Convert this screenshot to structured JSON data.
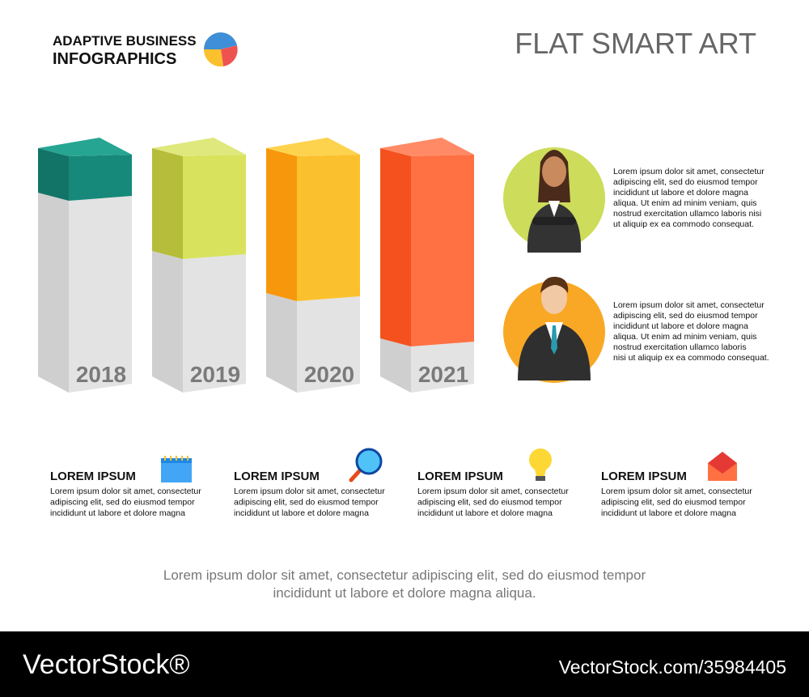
{
  "header": {
    "brand_line1": "ADAPTIVE BUSINESS",
    "brand_line2": "INFOGRAPHICS",
    "title": "FLAT SMART ART"
  },
  "bars": {
    "labels": [
      "2018",
      "2019",
      "2020",
      "2021"
    ]
  },
  "people": [
    {
      "lines": [
        "Lorem ipsum dolor sit amet, consectetur",
        "adipiscing elit, sed do eiusmod tempor",
        "incididunt ut labore et dolore magna",
        "aliqua. Ut enim ad minim veniam, quis",
        "nostrud exercitation ullamco laboris nisi",
        "ut aliquip ex ea commodo consequat."
      ]
    },
    {
      "lines": [
        "Lorem ipsum dolor sit amet, consectetur",
        "adipiscing elit, sed do eiusmod tempor",
        "incididunt ut labore et dolore magna",
        "aliqua. Ut enim ad minim veniam, quis",
        "nostrud exercitation ullamco laboris",
        "nisi ut aliquip ex ea commodo consequat."
      ]
    }
  ],
  "items": [
    {
      "heading": "LOREM IPSUM",
      "lines": [
        "Lorem ipsum dolor sit amet, consectetur",
        "adipiscing elit, sed do eiusmod tempor",
        "incididunt ut labore et dolore magna"
      ]
    },
    {
      "heading": "LOREM IPSUM",
      "lines": [
        "Lorem ipsum dolor sit amet, consectetur",
        "adipiscing elit, sed do eiusmod tempor",
        "incididunt ut labore et dolore magna"
      ]
    },
    {
      "heading": "LOREM IPSUM",
      "lines": [
        "Lorem ipsum dolor sit amet, consectetur",
        "adipiscing elit, sed do eiusmod tempor",
        "incididunt ut labore et dolore magna"
      ]
    },
    {
      "heading": "LOREM IPSUM",
      "lines": [
        "Lorem ipsum dolor sit amet, consectetur",
        "adipiscing elit, sed do eiusmod tempor",
        "incididunt ut labore et dolore magna"
      ]
    }
  ],
  "note": {
    "lines": [
      "Lorem ipsum dolor sit amet, consectetur adipiscing elit, sed do eiusmod tempor",
      "incididunt ut labore et dolore magna aliqua."
    ]
  },
  "watermark": {
    "brand": "VectorStock®",
    "id": "VectorStock.com/35984405"
  }
}
